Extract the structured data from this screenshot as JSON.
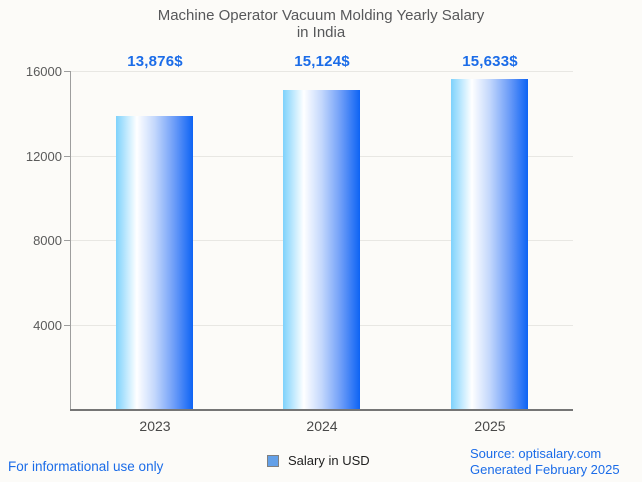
{
  "title": {
    "line1": "Machine Operator Vacuum Molding Yearly Salary",
    "line2": "in India"
  },
  "chart_data": {
    "type": "bar",
    "categories": [
      "2023",
      "2024",
      "2025"
    ],
    "values": [
      13876,
      15124,
      15633
    ],
    "value_labels": [
      "13,876$",
      "15,124$",
      "15,633$"
    ],
    "series": [
      {
        "name": "Salary in USD",
        "values": [
          13876,
          15124,
          15633
        ]
      }
    ],
    "title": "Machine Operator Vacuum Molding Yearly Salary in India",
    "xlabel": "",
    "ylabel": "",
    "ylim": [
      0,
      16000
    ],
    "y_ticks": [
      "16000",
      "12000",
      "8000",
      "4000"
    ],
    "grid": true,
    "legend_position": "bottom",
    "bar_gradient": [
      "#7ed2fc",
      "#ffffff",
      "#0d63f4"
    ]
  },
  "legend": {
    "label": "Salary in USD",
    "marker_color": "#63a0e8"
  },
  "footer": {
    "left": "For informational use only",
    "source": "Source: optisalary.com",
    "generated": "Generated February 2025"
  },
  "colors": {
    "accent_blue": "#1b6ce8",
    "title_gray": "#57585a",
    "axis_gray": "#9e9e9e",
    "background": "#fcfbf8"
  }
}
